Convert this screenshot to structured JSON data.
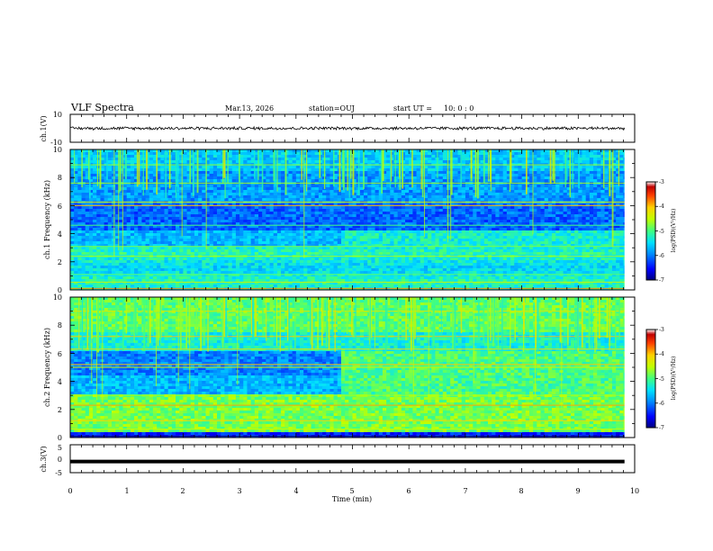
{
  "header": {
    "title": "VLF Spectra",
    "date": "Mar.13, 2026",
    "station": "station=OUJ",
    "start_label": "start UT =",
    "start_time": "10: 0 : 0"
  },
  "colors": {
    "colormap": [
      "#000080",
      "#0000ff",
      "#0090ff",
      "#00e0ff",
      "#40ff80",
      "#c0ff00",
      "#ffd000",
      "#ff4000",
      "#c00000",
      "#ffffff"
    ]
  },
  "chart_data": [
    {
      "type": "line",
      "id": "ch1-waveform",
      "ylabel": "ch.1(V)",
      "ylim": [
        -10,
        10
      ],
      "ytick_labels": [
        "10",
        "-10"
      ],
      "xlim": [
        0,
        10
      ],
      "trace": "noise band between about -1 and +1 V across the record"
    },
    {
      "type": "heatmap",
      "id": "ch1-spectrogram",
      "ylabel": "ch.1 Frequency (kHz)",
      "ylim": [
        0,
        10
      ],
      "ytick_labels": [
        "0",
        "2",
        "4",
        "6",
        "8",
        "10"
      ],
      "xlim": [
        0,
        10
      ],
      "zlabel": "log(PSD)(V²/Hz)",
      "zlim": [
        -7,
        -3
      ],
      "zticks": [
        "-3",
        "-4",
        "-5",
        "-6",
        "-7"
      ],
      "switch_minute": 4.8
    },
    {
      "type": "heatmap",
      "id": "ch2-spectrogram",
      "ylabel": "ch.2 Frequency (kHz)",
      "ylim": [
        0,
        10
      ],
      "ytick_labels": [
        "0",
        "2",
        "4",
        "6",
        "8",
        "10"
      ],
      "xlim": [
        0,
        10
      ],
      "zlabel": "log(PSD)(V²/Hz)",
      "zlim": [
        -7,
        -3
      ],
      "zticks": [
        "-3",
        "-4",
        "-5",
        "-6",
        "-7"
      ],
      "switch_minute": 4.8
    },
    {
      "type": "line",
      "id": "ch3-waveform",
      "ylabel": "ch.3(V)",
      "ylim": [
        -5,
        5
      ],
      "ytick_labels": [
        "5",
        "0",
        "-5"
      ],
      "xlim": [
        0,
        10
      ],
      "xlabel": "Time (min)",
      "xtick_labels": [
        "0",
        "1",
        "2",
        "3",
        "4",
        "5",
        "6",
        "7",
        "8",
        "9",
        "10"
      ],
      "trace": "flat thick line at about -1 V"
    }
  ]
}
